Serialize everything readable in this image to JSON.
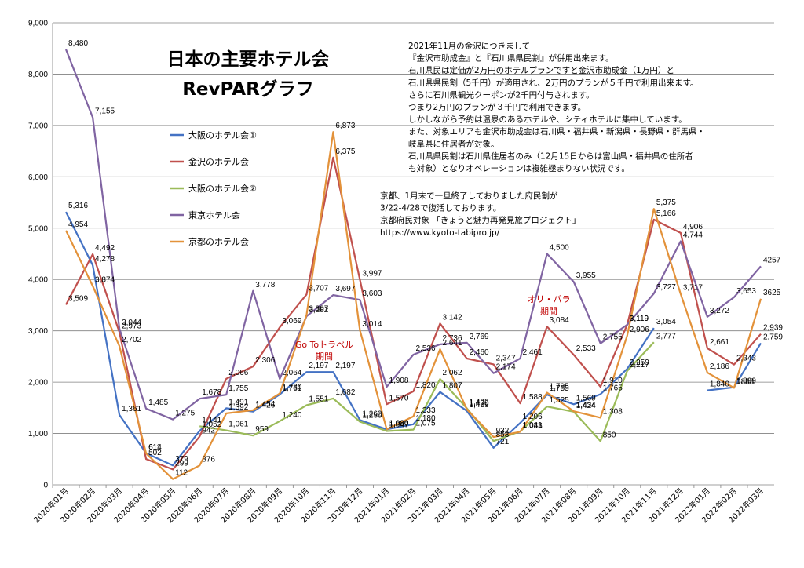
{
  "chart_data": {
    "type": "line",
    "title": "日本の主要ホテル会",
    "subtitle": "RevPARグラフ",
    "xlabel": "",
    "ylabel": "",
    "ylim": [
      0,
      9000
    ],
    "yticks": [
      "0",
      "1,000",
      "2,000",
      "3,000",
      "4,000",
      "5,000",
      "6,000",
      "7,000",
      "8,000",
      "9,000"
    ],
    "grid": true,
    "legend_position": "left",
    "categories": [
      "2020年01月",
      "2020年02月",
      "2020年03月",
      "2020年04月",
      "2020年05月",
      "2020年06月",
      "2020年07月",
      "2020年08月",
      "2020年09月",
      "2020年10月",
      "2020年11月",
      "2020年12月",
      "2021年01月",
      "2021年02月",
      "2021年03月",
      "2021年04月",
      "2021年05月",
      "2021年06月",
      "2021年07月",
      "2021年08月",
      "2021年09月",
      "2021年10月",
      "2021年11月",
      "2021年12月",
      "2022年01月",
      "2022年02月",
      "2022年03月"
    ],
    "series": [
      {
        "name": "大阪のホテル会①",
        "color": "#4472c4",
        "values": [
          5316,
          4278,
          1361,
          614,
          379,
          1052,
          1491,
          1426,
          1761,
          2197,
          2197,
          1262,
          1080,
          1180,
          1807,
          1439,
          721,
          1206,
          1755,
          1569,
          1765,
          2259,
          3054,
          null,
          1840,
          1899,
          2759
        ],
        "labels": [
          "5,316",
          "4,278",
          "1,361",
          "614",
          "379",
          "1,052",
          "1,491",
          "1,426",
          "1,761",
          "2,197",
          "2,197",
          "1,262",
          "1,080",
          "1,180",
          "1,807",
          "1,439",
          "721",
          "1,206",
          "1,755",
          "1,569",
          "1,765",
          "2,259",
          "3,054",
          "",
          "1,840",
          "1,899",
          "2,759"
        ]
      },
      {
        "name": "金沢のホテル会",
        "color": "#c0504d",
        "values": [
          3509,
          4492,
          2973,
          502,
          299,
          942,
          2066,
          2306,
          3069,
          3707,
          6375,
          3997,
          1570,
          1820,
          3142,
          2460,
          2347,
          1588,
          3084,
          2533,
          1910,
          3119,
          5166,
          4906,
          2661,
          2343,
          2939
        ],
        "labels": [
          "3,509",
          "4,492",
          "2,973",
          "502",
          "299",
          "942",
          "2,066",
          "2,306",
          "3,069",
          "3,707",
          "6,375",
          "3,997",
          "1,570",
          "1,820",
          "3,142",
          "2,460",
          "2,347",
          "1,588",
          "3,084",
          "2,533",
          "1,910",
          "3,119",
          "5,166",
          "4,906",
          "2,661",
          "2,343",
          "2,939"
        ]
      },
      {
        "name": "大阪のホテル会②",
        "color": "#9bbb59",
        "values": [
          null,
          null,
          null,
          null,
          null,
          1141,
          1061,
          959,
          1240,
          1551,
          1682,
          1230,
          1047,
          1075,
          2062,
          1492,
          853,
          1041,
          1525,
          1424,
          850,
          2217,
          2777,
          null,
          null,
          null,
          null
        ],
        "labels": [
          "",
          "",
          "",
          "",
          "",
          "1,141",
          "1,061",
          "959",
          "1,240",
          "1,551",
          "1,682",
          "1,230",
          "1,047",
          "1,075",
          "2,062",
          "1,492",
          "853",
          "1,041",
          "1,525",
          "1,424",
          "850",
          "2,217",
          "2,777",
          "",
          "",
          "",
          ""
        ]
      },
      {
        "name": "東京ホテル会",
        "color": "#8064a2",
        "values": [
          8480,
          7155,
          3044,
          1485,
          1275,
          1678,
          1755,
          3778,
          2064,
          3282,
          3697,
          3603,
          1908,
          2536,
          2736,
          2769,
          2174,
          2461,
          4500,
          3955,
          2755,
          3119,
          3727,
          4744,
          3272,
          3653,
          4257
        ],
        "labels": [
          "8,480",
          "7,155",
          "3,044",
          "1,485",
          "1,275",
          "1,678",
          "1,755",
          "3,778",
          "2,064",
          "3,282",
          "3,697",
          "3,603",
          "1,908",
          "2,536",
          "2,736",
          "2,769",
          "2,174",
          "2,461",
          "4,500",
          "3,955",
          "2,755",
          "3,119",
          "3,727",
          "4,744",
          "3,272",
          "3,653",
          "4257"
        ]
      },
      {
        "name": "京都のホテル会",
        "color": "#e3923a",
        "values": [
          4954,
          3874,
          2702,
          611,
          112,
          376,
          1392,
          1454,
          1780,
          3307,
          6873,
          3014,
          1080,
          1333,
          2641,
          1470,
          932,
          1033,
          1795,
          1434,
          1308,
          2906,
          5375,
          3717,
          2186,
          1888,
          3625
        ],
        "labels": [
          "4,954",
          "3,874",
          "2,702",
          "611",
          "112",
          "376",
          "1,392",
          "1,454",
          "1,780",
          "3,307",
          "6,873",
          "3,014",
          "1,080",
          "1,333",
          "2,641",
          "1,470",
          "932",
          "1,033",
          "1,795",
          "1,434",
          "1,308",
          "2,906",
          "5,375",
          "3,717",
          "2,186",
          "1888",
          "3625"
        ]
      }
    ],
    "annotations": [
      {
        "text": "Go Toトラベル",
        "color": "#c00000"
      },
      {
        "text": "期間",
        "color": "#c00000"
      },
      {
        "text": "オリ・パラ",
        "color": "#c00000"
      },
      {
        "text": "期間",
        "color": "#c00000"
      }
    ],
    "notes": [
      "2021年11月の金沢につきまして",
      "『金沢市助成金』と『石川県県民割』が併用出来ます。",
      "石川県民は定価が2万円のホテルプランですと金沢市助成金（1万円）と",
      "石川県県民割（5千円）が適用され、2万円のプランが５千円で利用出来ます。",
      "さらに石川県観光クーポンが2千円付与されます。",
      "つまり2万円のプランが３千円で利用できます。",
      "しかしながら予約は温泉のあるホテルや、シティホテルに集中しています。",
      "また、対象エリアも金沢市助成金は石川県・福井県・新潟県・長野県・群馬県・",
      "岐阜県に住居者が対象。",
      "石川県県民割は石川県住居者のみ（12月15日からは富山県・福井県の住所者",
      "も対象）となりオペレーションは複雑極まりない状況です。"
    ],
    "notes2": [
      "京都、1月末で一旦終了しておりました府民割が",
      "3/22-4/28で復活しております。",
      "京都府民対象 「きょうと魅力再発見旅プロジェクト」",
      "https://www.kyoto-tabipro.jp/"
    ]
  }
}
